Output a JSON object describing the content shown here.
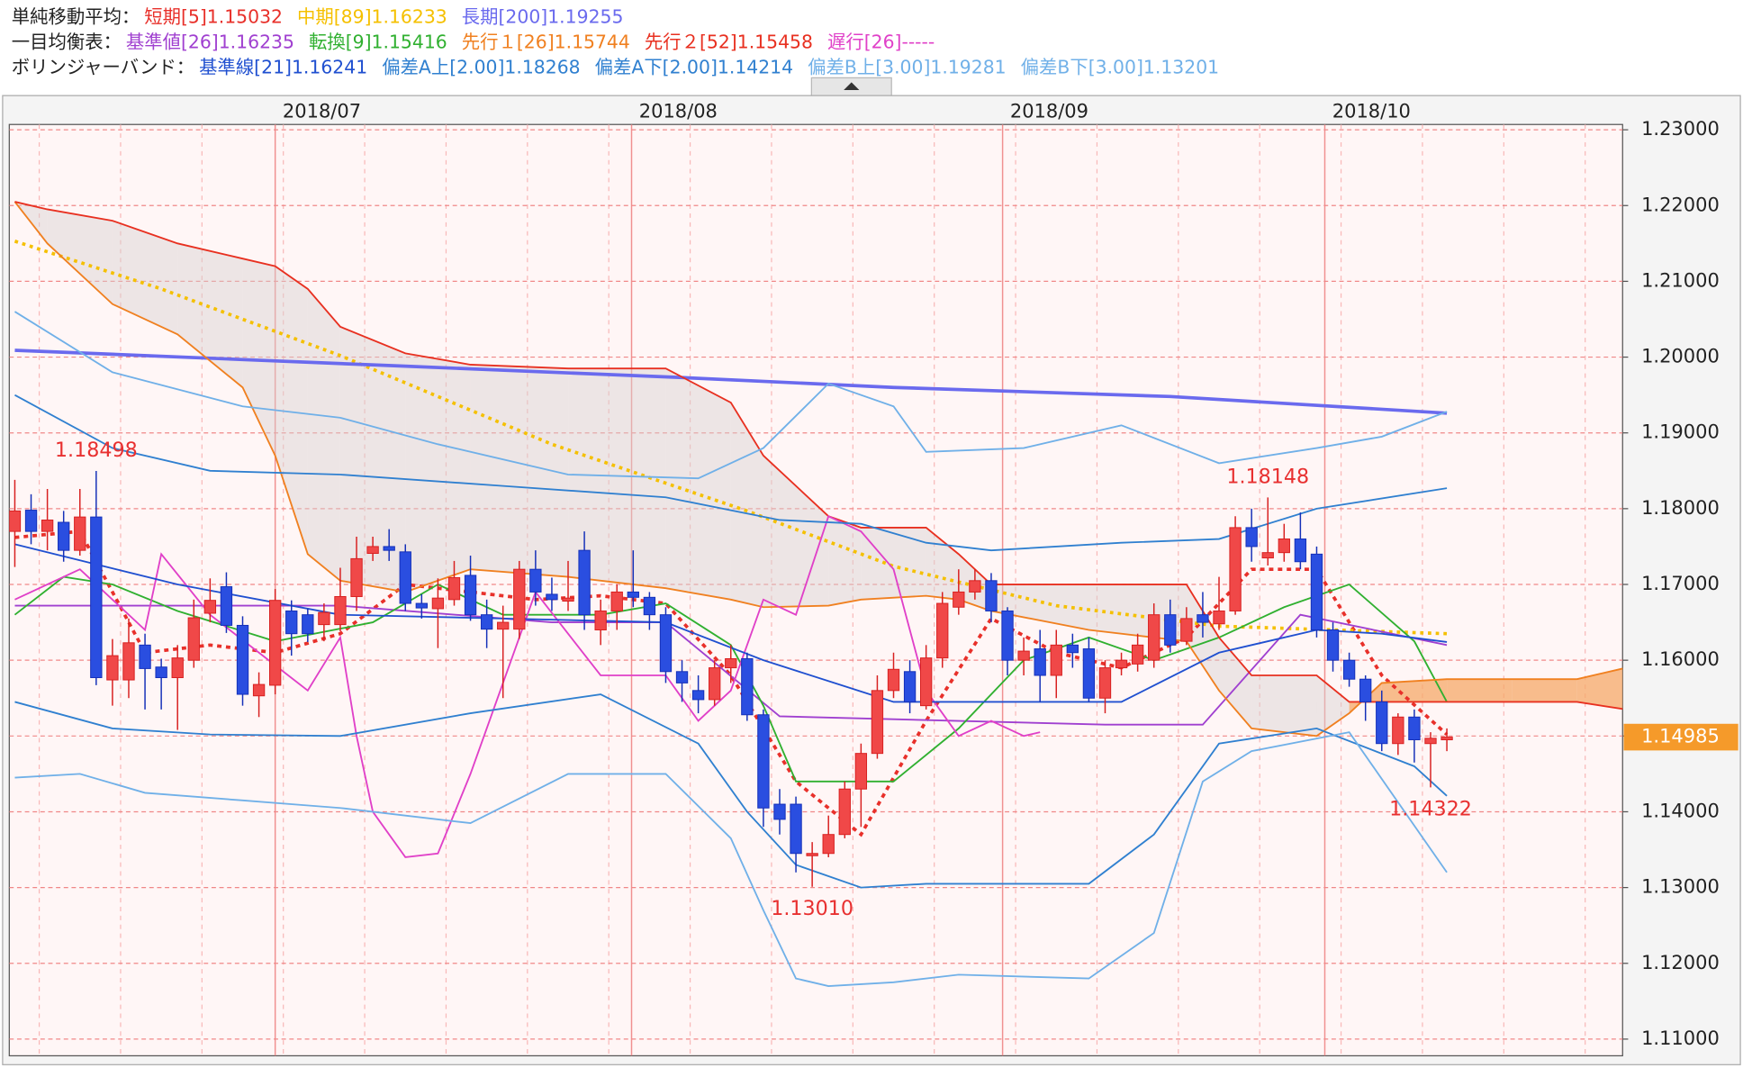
{
  "chart_data": {
    "type": "candlestick",
    "legend_groups": [
      {
        "label": "単純移動平均：",
        "color": "#222222",
        "series": [
          0,
          1,
          2
        ]
      },
      {
        "label": "一目均衡表：",
        "color": "#222222",
        "series": [
          3,
          4,
          5,
          6,
          7
        ]
      },
      {
        "label": "ボリンジャーバンド：",
        "color": "#222222",
        "series": [
          8,
          9,
          10,
          11,
          12
        ]
      }
    ],
    "up_color": "#f04848",
    "down_color": "#2a4ee0",
    "xlim": [
      -0.34,
      98.8
    ],
    "ylim": [
      1.1078,
      1.2307
    ],
    "xticks": [
      {
        "value": 16,
        "label": "2018/07"
      },
      {
        "value": 37.9,
        "label": "2018/08"
      },
      {
        "value": 60.7,
        "label": "2018/09"
      },
      {
        "value": 80.5,
        "label": "2018/10"
      }
    ],
    "yticks": [
      {
        "value": 1.23,
        "label": "1.23000"
      },
      {
        "value": 1.22,
        "label": "1.22000"
      },
      {
        "value": 1.21,
        "label": "1.21000"
      },
      {
        "value": 1.2,
        "label": "1.20000"
      },
      {
        "value": 1.19,
        "label": "1.19000"
      },
      {
        "value": 1.18,
        "label": "1.18000"
      },
      {
        "value": 1.17,
        "label": "1.17000"
      },
      {
        "value": 1.16,
        "label": "1.16000"
      },
      {
        "value": 1.15,
        "label": "1.15000"
      },
      {
        "value": 1.14,
        "label": "1.14000"
      },
      {
        "value": 1.13,
        "label": "1.13000"
      },
      {
        "value": 1.12,
        "label": "1.12000"
      },
      {
        "value": 1.11,
        "label": "1.11000"
      }
    ],
    "grid": true,
    "last_price": 1.14985,
    "last_price_color": "#f59a2a",
    "candles": {
      "open": [
        1.177,
        1.1798,
        1.177,
        1.1782,
        1.1745,
        1.1789,
        1.1574,
        1.1574,
        1.162,
        1.1591,
        1.1577,
        1.16,
        1.1662,
        1.1697,
        1.1646,
        1.1553,
        1.1567,
        1.1665,
        1.166,
        1.1647,
        1.1647,
        1.1684,
        1.1741,
        1.175,
        1.1743,
        1.1675,
        1.1668,
        1.168,
        1.1712,
        1.166,
        1.1641,
        1.1641,
        1.172,
        1.1687,
        1.1678,
        1.1745,
        1.164,
        1.1665,
        1.169,
        1.1683,
        1.166,
        1.1585,
        1.156,
        1.1548,
        1.159,
        1.1602,
        1.1528,
        1.141,
        1.141,
        1.1342,
        1.1345,
        1.137,
        1.143,
        1.1477,
        1.156,
        1.1585,
        1.154,
        1.1603,
        1.167,
        1.169,
        1.1705,
        1.1665,
        1.16,
        1.1615,
        1.158,
        1.162,
        1.1615,
        1.155,
        1.159,
        1.1595,
        1.16,
        1.166,
        1.1625,
        1.166,
        1.1648,
        1.1665,
        1.1775,
        1.1735,
        1.1742,
        1.176,
        1.174,
        1.164,
        1.16,
        1.1575,
        1.1545,
        1.149,
        1.1525,
        1.149,
        1.1495
      ],
      "high": [
        1.1838,
        1.1819,
        1.1826,
        1.1797,
        1.1826,
        1.18498,
        1.1628,
        1.1655,
        1.1635,
        1.1602,
        1.162,
        1.168,
        1.1708,
        1.1716,
        1.1658,
        1.1584,
        1.1694,
        1.1679,
        1.1668,
        1.1675,
        1.1722,
        1.1763,
        1.1763,
        1.1773,
        1.1753,
        1.1687,
        1.1708,
        1.1731,
        1.1738,
        1.168,
        1.1672,
        1.1731,
        1.1745,
        1.1709,
        1.1731,
        1.177,
        1.168,
        1.17,
        1.1745,
        1.169,
        1.167,
        1.16,
        1.158,
        1.16,
        1.162,
        1.161,
        1.1535,
        1.143,
        1.142,
        1.136,
        1.1395,
        1.144,
        1.149,
        1.158,
        1.161,
        1.16,
        1.162,
        1.169,
        1.172,
        1.172,
        1.1715,
        1.167,
        1.163,
        1.164,
        1.164,
        1.1635,
        1.163,
        1.16,
        1.161,
        1.1635,
        1.1675,
        1.168,
        1.167,
        1.169,
        1.171,
        1.179,
        1.18,
        1.18148,
        1.178,
        1.1795,
        1.175,
        1.165,
        1.161,
        1.158,
        1.156,
        1.153,
        1.1535,
        1.1505,
        1.151
      ],
      "low": [
        1.1723,
        1.1753,
        1.1745,
        1.173,
        1.1738,
        1.1567,
        1.154,
        1.155,
        1.1535,
        1.1535,
        1.1508,
        1.159,
        1.165,
        1.1636,
        1.154,
        1.1525,
        1.1555,
        1.1606,
        1.1624,
        1.1625,
        1.1638,
        1.1665,
        1.1731,
        1.1731,
        1.1665,
        1.1655,
        1.1616,
        1.1672,
        1.1652,
        1.1616,
        1.155,
        1.1628,
        1.1672,
        1.1665,
        1.1665,
        1.164,
        1.162,
        1.164,
        1.167,
        1.164,
        1.157,
        1.1545,
        1.153,
        1.154,
        1.157,
        1.152,
        1.138,
        1.137,
        1.132,
        1.1301,
        1.134,
        1.1365,
        1.138,
        1.147,
        1.155,
        1.153,
        1.1535,
        1.159,
        1.166,
        1.168,
        1.165,
        1.158,
        1.158,
        1.1545,
        1.155,
        1.159,
        1.1545,
        1.153,
        1.158,
        1.1585,
        1.159,
        1.161,
        1.162,
        1.163,
        1.164,
        1.166,
        1.173,
        1.1725,
        1.173,
        1.172,
        1.163,
        1.1585,
        1.1565,
        1.152,
        1.148,
        1.1475,
        1.1465,
        1.14322,
        1.148
      ],
      "close": [
        1.1797,
        1.177,
        1.1785,
        1.1745,
        1.1789,
        1.1577,
        1.1606,
        1.1623,
        1.1589,
        1.1577,
        1.1603,
        1.1656,
        1.1679,
        1.1646,
        1.1555,
        1.1568,
        1.1679,
        1.1635,
        1.1635,
        1.1663,
        1.1684,
        1.1734,
        1.175,
        1.1745,
        1.1675,
        1.1669,
        1.1682,
        1.1709,
        1.166,
        1.1641,
        1.165,
        1.172,
        1.169,
        1.168,
        1.1682,
        1.166,
        1.1665,
        1.169,
        1.1683,
        1.166,
        1.1585,
        1.157,
        1.1548,
        1.159,
        1.1602,
        1.1528,
        1.1405,
        1.139,
        1.1345,
        1.1345,
        1.137,
        1.143,
        1.1477,
        1.156,
        1.1588,
        1.1545,
        1.1603,
        1.1675,
        1.169,
        1.1705,
        1.1665,
        1.16,
        1.1612,
        1.158,
        1.162,
        1.161,
        1.155,
        1.159,
        1.16,
        1.162,
        1.166,
        1.162,
        1.1655,
        1.165,
        1.1665,
        1.1775,
        1.175,
        1.1742,
        1.176,
        1.173,
        1.164,
        1.16,
        1.1575,
        1.1545,
        1.149,
        1.1525,
        1.1495,
        1.1497,
        1.14985
      ]
    },
    "series": [
      {
        "name": "短期[5]1.15032",
        "color": "#e8302a",
        "width": 3,
        "dash": "4 4",
        "x": [
          0,
          4,
          8,
          12,
          16,
          20,
          24,
          28,
          32,
          36,
          40,
          44,
          48,
          52,
          56,
          60,
          64,
          68,
          72,
          76,
          80,
          84,
          88
        ],
        "values": [
          1.1762,
          1.177,
          1.161,
          1.162,
          1.161,
          1.1635,
          1.17,
          1.169,
          1.168,
          1.1685,
          1.1675,
          1.158,
          1.144,
          1.137,
          1.152,
          1.1655,
          1.161,
          1.159,
          1.163,
          1.172,
          1.172,
          1.158,
          1.1502
        ]
      },
      {
        "name": "中期[89]1.16233",
        "color": "#f5c000",
        "width": 3,
        "dash": "3 4",
        "x": [
          0,
          9,
          20,
          33,
          45,
          54,
          64,
          74,
          88
        ],
        "values": [
          1.2153,
          1.209,
          1.2002,
          1.1885,
          1.1797,
          1.1724,
          1.1672,
          1.1645,
          1.1635
        ]
      },
      {
        "name": "長期[200]1.19255",
        "color": "#6a6aee",
        "width": 3,
        "x": [
          0,
          24,
          41,
          54,
          71,
          88
        ],
        "values": [
          1.2009,
          1.1988,
          1.1973,
          1.196,
          1.1948,
          1.1926
        ]
      },
      {
        "name": "基準値[26]1.16235",
        "color": "#a040d0",
        "width": 1.5,
        "x": [
          0,
          20,
          33,
          40,
          47,
          67,
          73,
          79,
          88
        ],
        "values": [
          1.1672,
          1.1672,
          1.165,
          1.165,
          1.1526,
          1.1515,
          1.1515,
          1.166,
          1.162
        ]
      },
      {
        "name": "転換[9]1.15416",
        "color": "#30b030",
        "width": 1.5,
        "x": [
          0,
          3,
          6,
          10,
          16,
          22,
          26,
          30,
          36,
          40,
          44,
          46,
          48,
          54,
          58,
          62,
          66,
          70,
          74,
          78,
          82,
          86,
          88
        ],
        "values": [
          1.166,
          1.171,
          1.17,
          1.1665,
          1.1625,
          1.165,
          1.17,
          1.166,
          1.166,
          1.1675,
          1.162,
          1.154,
          1.144,
          1.144,
          1.151,
          1.16,
          1.163,
          1.16,
          1.163,
          1.167,
          1.17,
          1.1625,
          1.1545
        ]
      },
      {
        "name": "先行１[26]1.15744",
        "color": "#f08020",
        "width": 1.5,
        "cloud": "upper",
        "x": [
          0,
          2,
          6,
          10,
          14,
          16,
          18,
          20,
          24,
          28,
          34,
          40,
          44,
          46,
          50,
          52,
          56,
          58,
          60,
          66,
          72,
          74,
          76,
          80,
          82,
          84,
          88,
          92,
          96,
          99
        ],
        "values": [
          1.2205,
          1.215,
          1.207,
          1.203,
          1.196,
          1.187,
          1.174,
          1.1705,
          1.169,
          1.172,
          1.171,
          1.1695,
          1.168,
          1.167,
          1.1672,
          1.168,
          1.1685,
          1.168,
          1.1665,
          1.164,
          1.1625,
          1.156,
          1.151,
          1.15,
          1.153,
          1.157,
          1.1575,
          1.1575,
          1.1575,
          1.159
        ]
      },
      {
        "name": "先行２[52]1.15458",
        "color": "#e83020",
        "width": 1.5,
        "cloud": "lower",
        "x": [
          0,
          2,
          6,
          10,
          14,
          16,
          18,
          20,
          24,
          28,
          34,
          40,
          44,
          46,
          50,
          52,
          56,
          58,
          60,
          66,
          72,
          74,
          76,
          80,
          82,
          84,
          88,
          92,
          96,
          99
        ],
        "values": [
          1.2205,
          1.2195,
          1.218,
          1.215,
          1.213,
          1.212,
          1.209,
          1.204,
          1.2005,
          1.199,
          1.1985,
          1.1985,
          1.194,
          1.187,
          1.179,
          1.1775,
          1.1775,
          1.174,
          1.17,
          1.17,
          1.17,
          1.163,
          1.158,
          1.158,
          1.1545,
          1.1545,
          1.1545,
          1.1545,
          1.1545,
          1.1535
        ]
      },
      {
        "name": "遅行[26]-----",
        "color": "#e040c8",
        "width": 1.5,
        "x": [
          0,
          4,
          8,
          9,
          12,
          18,
          20,
          21,
          22,
          24,
          26,
          28,
          30,
          32,
          36,
          38,
          40,
          42,
          44,
          46,
          48,
          50,
          52,
          54,
          56,
          58,
          60,
          62,
          63
        ],
        "values": [
          1.168,
          1.172,
          1.164,
          1.174,
          1.166,
          1.156,
          1.163,
          1.15,
          1.14,
          1.134,
          1.1345,
          1.145,
          1.157,
          1.169,
          1.158,
          1.158,
          1.158,
          1.152,
          1.156,
          1.168,
          1.166,
          1.179,
          1.177,
          1.172,
          1.156,
          1.15,
          1.152,
          1.15,
          1.1505
        ]
      },
      {
        "name": "基準線[21]1.16241",
        "color": "#2050d0",
        "width": 1.5,
        "x": [
          0,
          10,
          20,
          30,
          40,
          46,
          54,
          60,
          68,
          74,
          80,
          84,
          88
        ],
        "values": [
          1.1753,
          1.17,
          1.166,
          1.1655,
          1.165,
          1.16,
          1.1545,
          1.1545,
          1.1545,
          1.161,
          1.164,
          1.1635,
          1.1624
        ]
      },
      {
        "name": "偏差A上[2.00]1.18268",
        "color": "#3080d0",
        "width": 1.5,
        "x": [
          0,
          6,
          12,
          20,
          30,
          40,
          47,
          52,
          56,
          60,
          68,
          74,
          80,
          88
        ],
        "values": [
          1.195,
          1.188,
          1.185,
          1.1845,
          1.183,
          1.1815,
          1.1785,
          1.178,
          1.1755,
          1.1745,
          1.1755,
          1.176,
          1.18,
          1.1827
        ]
      },
      {
        "name": "偏差A下[2.00]1.14214",
        "color": "#3080d0",
        "width": 1.5,
        "x": [
          0,
          6,
          12,
          20,
          28,
          36,
          42,
          45,
          48,
          52,
          56,
          66,
          70,
          74,
          80,
          86,
          88
        ],
        "values": [
          1.1545,
          1.151,
          1.1502,
          1.15,
          1.153,
          1.1555,
          1.149,
          1.14,
          1.133,
          1.13,
          1.1305,
          1.1305,
          1.137,
          1.149,
          1.151,
          1.146,
          1.1421
        ]
      },
      {
        "name": "偏差B上[3.00]1.19281",
        "color": "#70b0e8",
        "width": 1.5,
        "x": [
          0,
          6,
          14,
          20,
          26,
          34,
          42,
          46,
          50,
          54,
          56,
          62,
          68,
          74,
          80,
          84,
          88
        ],
        "values": [
          1.206,
          1.198,
          1.1935,
          1.192,
          1.1885,
          1.1845,
          1.184,
          1.188,
          1.1965,
          1.1935,
          1.1875,
          1.188,
          1.191,
          1.186,
          1.188,
          1.1895,
          1.1928
        ]
      },
      {
        "name": "偏差B下[3.00]1.13201",
        "color": "#70b0e8",
        "width": 1.5,
        "x": [
          0,
          4,
          8,
          14,
          20,
          24,
          28,
          34,
          40,
          44,
          46,
          48,
          50,
          54,
          58,
          66,
          70,
          73,
          76,
          82,
          88
        ],
        "values": [
          1.1445,
          1.145,
          1.1425,
          1.1415,
          1.1405,
          1.1395,
          1.1385,
          1.145,
          1.145,
          1.1365,
          1.127,
          1.118,
          1.117,
          1.1175,
          1.1185,
          1.118,
          1.124,
          1.144,
          1.148,
          1.1505,
          1.132
        ]
      }
    ],
    "cloud_colors": {
      "upper": "#f5a868",
      "lower": "#d8d0d0"
    },
    "annotations": [
      {
        "x": 5,
        "value": 1.18498,
        "side": "above"
      },
      {
        "x": 49,
        "value": 1.1301,
        "label": "1.13010",
        "side": "below"
      },
      {
        "x": 77,
        "value": 1.18148,
        "side": "above"
      },
      {
        "x": 87,
        "value": 1.14322,
        "side": "below"
      }
    ]
  }
}
